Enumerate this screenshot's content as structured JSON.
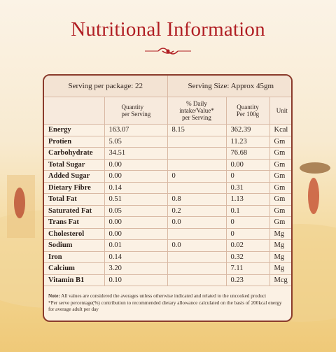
{
  "header": {
    "title": "Nutritional Information"
  },
  "serving": {
    "per_package": "Serving per package: 22",
    "size": "Serving Size: Approx 45gm"
  },
  "table": {
    "columns": [
      null,
      [
        "Quantity",
        "per Serving"
      ],
      [
        "% Daily",
        "intake/Value*",
        "per Serving"
      ],
      [
        "Quantity",
        "Per 100g"
      ],
      [
        "Unit"
      ]
    ],
    "rows": [
      [
        "Energy",
        "163.07",
        "8.15",
        "362.39",
        "Kcal"
      ],
      [
        "Protien",
        "5.05",
        null,
        "11.23",
        "Gm"
      ],
      [
        "Carbohydrate",
        "34.51",
        null,
        "76.68",
        "Gm"
      ],
      [
        "Total Sugar",
        "0.00",
        null,
        "0.00",
        "Gm"
      ],
      [
        "Added Sugar",
        "0.00",
        "0",
        "0",
        "Gm"
      ],
      [
        "Dietary Fibre",
        "0.14",
        null,
        "0.31",
        "Gm"
      ],
      [
        "Total Fat",
        "0.51",
        "0.8",
        "1.13",
        "Gm"
      ],
      [
        "Saturated Fat",
        "0.05",
        "0.2",
        "0.1",
        "Gm"
      ],
      [
        "Trans Fat",
        "0.00",
        "0.0",
        "0",
        "Gm"
      ],
      [
        "Cholesterol",
        "0.00",
        null,
        "0",
        "Mg"
      ],
      [
        "Sodium",
        "0.01",
        "0.0",
        "0.02",
        "Mg"
      ],
      [
        "Iron",
        "0.14",
        null,
        "0.32",
        "Mg"
      ],
      [
        "Calcium",
        "3.20",
        null,
        "7.11",
        "Mg"
      ],
      [
        "Vitamin B1",
        "0.10",
        null,
        "0.23",
        "Mcg"
      ]
    ]
  },
  "notes": {
    "label": "Note:",
    "text": "All values are considered the averages unless otherwise indicated and related to the uncooked product",
    "footnote": "*Per serve percentage(%) contribution to recommended dietary allowance calculated on the basis of 200kcal energy for average adult per day"
  }
}
